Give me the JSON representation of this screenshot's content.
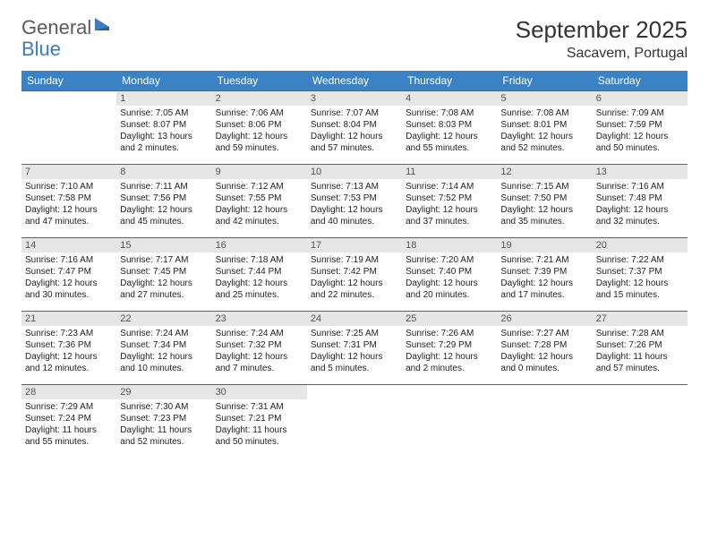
{
  "logo": {
    "general": "General",
    "blue": "Blue"
  },
  "header": {
    "title": "September 2025",
    "location": "Sacavem, Portugal"
  },
  "colors": {
    "header_bg": "#3b82c4",
    "header_text": "#ffffff",
    "daynum_bg": "#e6e6e6",
    "daynum_text": "#555555",
    "cell_border": "#3b6a9a",
    "body_text": "#222222"
  },
  "weekdays": [
    "Sunday",
    "Monday",
    "Tuesday",
    "Wednesday",
    "Thursday",
    "Friday",
    "Saturday"
  ],
  "weeks": [
    [
      null,
      {
        "n": "1",
        "sr": "Sunrise: 7:05 AM",
        "ss": "Sunset: 8:07 PM",
        "d1": "Daylight: 13 hours",
        "d2": "and 2 minutes."
      },
      {
        "n": "2",
        "sr": "Sunrise: 7:06 AM",
        "ss": "Sunset: 8:06 PM",
        "d1": "Daylight: 12 hours",
        "d2": "and 59 minutes."
      },
      {
        "n": "3",
        "sr": "Sunrise: 7:07 AM",
        "ss": "Sunset: 8:04 PM",
        "d1": "Daylight: 12 hours",
        "d2": "and 57 minutes."
      },
      {
        "n": "4",
        "sr": "Sunrise: 7:08 AM",
        "ss": "Sunset: 8:03 PM",
        "d1": "Daylight: 12 hours",
        "d2": "and 55 minutes."
      },
      {
        "n": "5",
        "sr": "Sunrise: 7:08 AM",
        "ss": "Sunset: 8:01 PM",
        "d1": "Daylight: 12 hours",
        "d2": "and 52 minutes."
      },
      {
        "n": "6",
        "sr": "Sunrise: 7:09 AM",
        "ss": "Sunset: 7:59 PM",
        "d1": "Daylight: 12 hours",
        "d2": "and 50 minutes."
      }
    ],
    [
      {
        "n": "7",
        "sr": "Sunrise: 7:10 AM",
        "ss": "Sunset: 7:58 PM",
        "d1": "Daylight: 12 hours",
        "d2": "and 47 minutes."
      },
      {
        "n": "8",
        "sr": "Sunrise: 7:11 AM",
        "ss": "Sunset: 7:56 PM",
        "d1": "Daylight: 12 hours",
        "d2": "and 45 minutes."
      },
      {
        "n": "9",
        "sr": "Sunrise: 7:12 AM",
        "ss": "Sunset: 7:55 PM",
        "d1": "Daylight: 12 hours",
        "d2": "and 42 minutes."
      },
      {
        "n": "10",
        "sr": "Sunrise: 7:13 AM",
        "ss": "Sunset: 7:53 PM",
        "d1": "Daylight: 12 hours",
        "d2": "and 40 minutes."
      },
      {
        "n": "11",
        "sr": "Sunrise: 7:14 AM",
        "ss": "Sunset: 7:52 PM",
        "d1": "Daylight: 12 hours",
        "d2": "and 37 minutes."
      },
      {
        "n": "12",
        "sr": "Sunrise: 7:15 AM",
        "ss": "Sunset: 7:50 PM",
        "d1": "Daylight: 12 hours",
        "d2": "and 35 minutes."
      },
      {
        "n": "13",
        "sr": "Sunrise: 7:16 AM",
        "ss": "Sunset: 7:48 PM",
        "d1": "Daylight: 12 hours",
        "d2": "and 32 minutes."
      }
    ],
    [
      {
        "n": "14",
        "sr": "Sunrise: 7:16 AM",
        "ss": "Sunset: 7:47 PM",
        "d1": "Daylight: 12 hours",
        "d2": "and 30 minutes."
      },
      {
        "n": "15",
        "sr": "Sunrise: 7:17 AM",
        "ss": "Sunset: 7:45 PM",
        "d1": "Daylight: 12 hours",
        "d2": "and 27 minutes."
      },
      {
        "n": "16",
        "sr": "Sunrise: 7:18 AM",
        "ss": "Sunset: 7:44 PM",
        "d1": "Daylight: 12 hours",
        "d2": "and 25 minutes."
      },
      {
        "n": "17",
        "sr": "Sunrise: 7:19 AM",
        "ss": "Sunset: 7:42 PM",
        "d1": "Daylight: 12 hours",
        "d2": "and 22 minutes."
      },
      {
        "n": "18",
        "sr": "Sunrise: 7:20 AM",
        "ss": "Sunset: 7:40 PM",
        "d1": "Daylight: 12 hours",
        "d2": "and 20 minutes."
      },
      {
        "n": "19",
        "sr": "Sunrise: 7:21 AM",
        "ss": "Sunset: 7:39 PM",
        "d1": "Daylight: 12 hours",
        "d2": "and 17 minutes."
      },
      {
        "n": "20",
        "sr": "Sunrise: 7:22 AM",
        "ss": "Sunset: 7:37 PM",
        "d1": "Daylight: 12 hours",
        "d2": "and 15 minutes."
      }
    ],
    [
      {
        "n": "21",
        "sr": "Sunrise: 7:23 AM",
        "ss": "Sunset: 7:36 PM",
        "d1": "Daylight: 12 hours",
        "d2": "and 12 minutes."
      },
      {
        "n": "22",
        "sr": "Sunrise: 7:24 AM",
        "ss": "Sunset: 7:34 PM",
        "d1": "Daylight: 12 hours",
        "d2": "and 10 minutes."
      },
      {
        "n": "23",
        "sr": "Sunrise: 7:24 AM",
        "ss": "Sunset: 7:32 PM",
        "d1": "Daylight: 12 hours",
        "d2": "and 7 minutes."
      },
      {
        "n": "24",
        "sr": "Sunrise: 7:25 AM",
        "ss": "Sunset: 7:31 PM",
        "d1": "Daylight: 12 hours",
        "d2": "and 5 minutes."
      },
      {
        "n": "25",
        "sr": "Sunrise: 7:26 AM",
        "ss": "Sunset: 7:29 PM",
        "d1": "Daylight: 12 hours",
        "d2": "and 2 minutes."
      },
      {
        "n": "26",
        "sr": "Sunrise: 7:27 AM",
        "ss": "Sunset: 7:28 PM",
        "d1": "Daylight: 12 hours",
        "d2": "and 0 minutes."
      },
      {
        "n": "27",
        "sr": "Sunrise: 7:28 AM",
        "ss": "Sunset: 7:26 PM",
        "d1": "Daylight: 11 hours",
        "d2": "and 57 minutes."
      }
    ],
    [
      {
        "n": "28",
        "sr": "Sunrise: 7:29 AM",
        "ss": "Sunset: 7:24 PM",
        "d1": "Daylight: 11 hours",
        "d2": "and 55 minutes."
      },
      {
        "n": "29",
        "sr": "Sunrise: 7:30 AM",
        "ss": "Sunset: 7:23 PM",
        "d1": "Daylight: 11 hours",
        "d2": "and 52 minutes."
      },
      {
        "n": "30",
        "sr": "Sunrise: 7:31 AM",
        "ss": "Sunset: 7:21 PM",
        "d1": "Daylight: 11 hours",
        "d2": "and 50 minutes."
      },
      null,
      null,
      null,
      null
    ]
  ]
}
